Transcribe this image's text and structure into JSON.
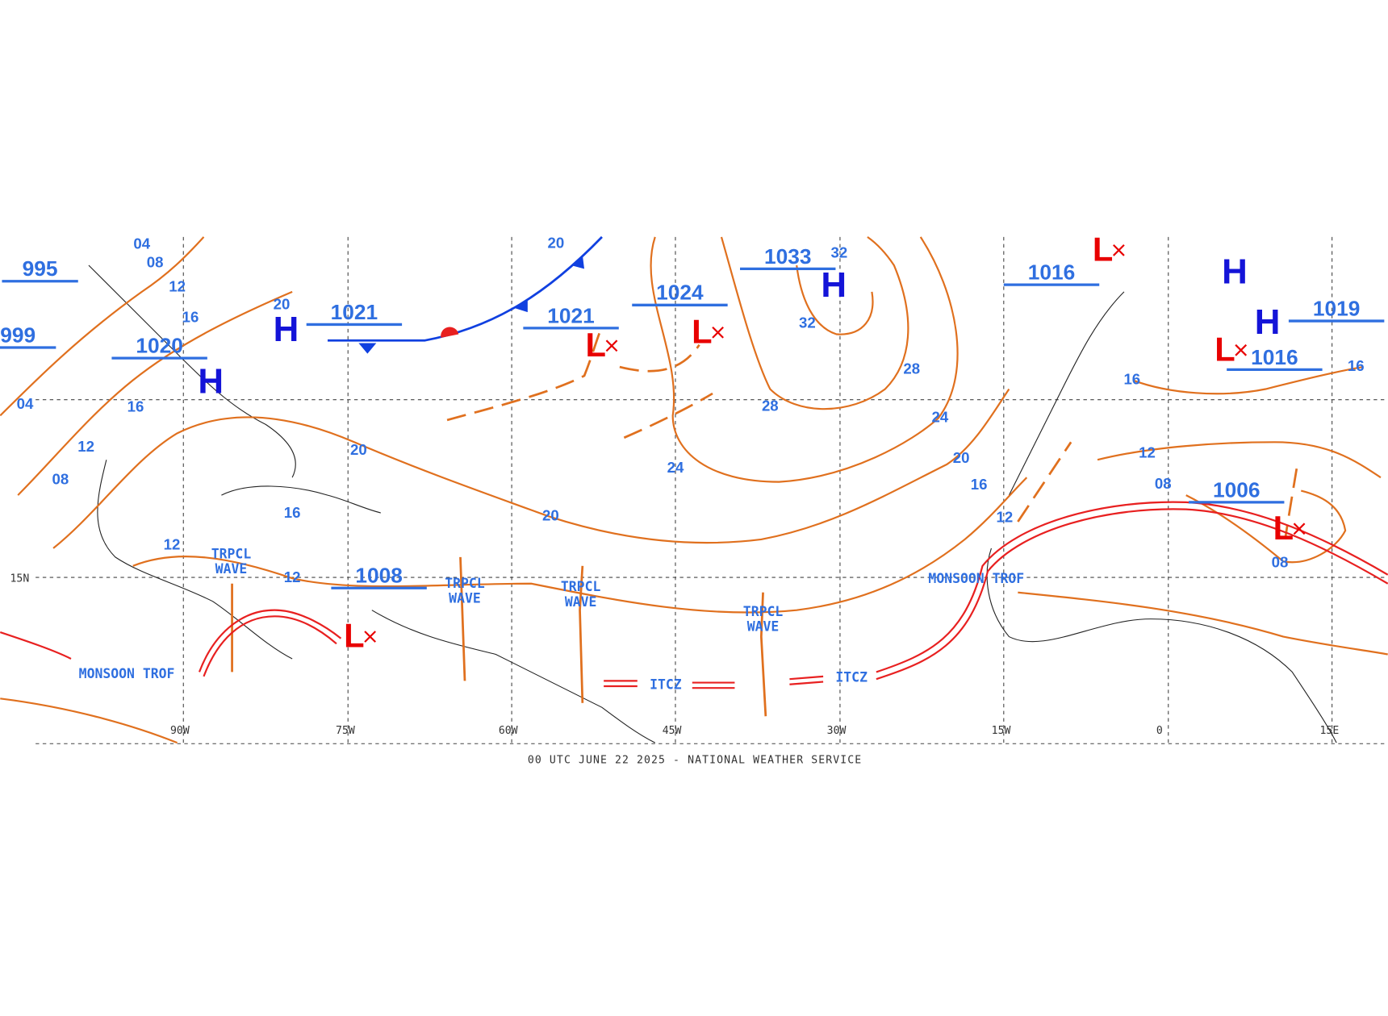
{
  "footer": "00 UTC JUNE 22 2025 - NATIONAL WEATHER SERVICE",
  "longitude_labels": [
    "90W",
    "75W",
    "60W",
    "45W",
    "30W",
    "15W",
    "0",
    "15E"
  ],
  "latitude_labels": [
    "15N"
  ],
  "pressure_labels": [
    "995",
    "999",
    "1020",
    "1021",
    "1021",
    "1024",
    "1033",
    "1016",
    "1019",
    "1016",
    "1006",
    "1008"
  ],
  "high_centers": [
    "H",
    "H",
    "H",
    "H",
    "H"
  ],
  "low_centers": [
    "L",
    "L",
    "L",
    "L",
    "L",
    "L"
  ],
  "isobar_labels": [
    "04",
    "08",
    "12",
    "16",
    "20",
    "16",
    "12",
    "08",
    "20",
    "16",
    "12",
    "12",
    "20",
    "20",
    "24",
    "28",
    "32",
    "32",
    "28",
    "24",
    "20",
    "16",
    "12",
    "08",
    "12",
    "08",
    "16",
    "16",
    "04"
  ],
  "feature_labels": [
    "TRPCL WAVE",
    "TRPCL WAVE",
    "TRPCL WAVE",
    "TRPCL WAVE",
    "ITCZ",
    "ITCZ",
    "MONSOON TROF",
    "MONSOON TROF"
  ]
}
